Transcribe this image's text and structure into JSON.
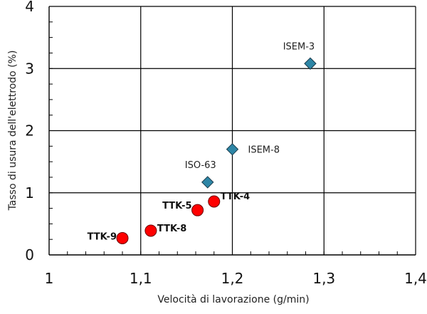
{
  "chart_data": {
    "type": "scatter",
    "xlabel": "Velocità di lavorazione (g/min)",
    "ylabel": "Tasso di usura dell'elettrodo (%)",
    "xlim": [
      1.0,
      1.4
    ],
    "ylim": [
      0,
      4
    ],
    "x_ticks": [
      "1",
      "1,1",
      "1,2",
      "1,3",
      "1,4"
    ],
    "y_ticks": [
      "0",
      "1",
      "2",
      "3",
      "4"
    ],
    "grid": true,
    "series": [
      {
        "marker": "diamond",
        "color": "#2E86A6",
        "points": [
          {
            "label": "ISEM-3",
            "x": 1.285,
            "y": 3.08
          },
          {
            "label": "ISEM-8",
            "x": 1.2,
            "y": 1.7
          },
          {
            "label": "ISO-63",
            "x": 1.173,
            "y": 1.17
          }
        ]
      },
      {
        "marker": "circle",
        "color": "#FF0000",
        "points": [
          {
            "label": "TTK-4",
            "x": 1.18,
            "y": 0.86
          },
          {
            "label": "TTK-5",
            "x": 1.162,
            "y": 0.72
          },
          {
            "label": "TTK-8",
            "x": 1.111,
            "y": 0.39
          },
          {
            "label": "TTK-9",
            "x": 1.08,
            "y": 0.27
          }
        ]
      }
    ]
  }
}
